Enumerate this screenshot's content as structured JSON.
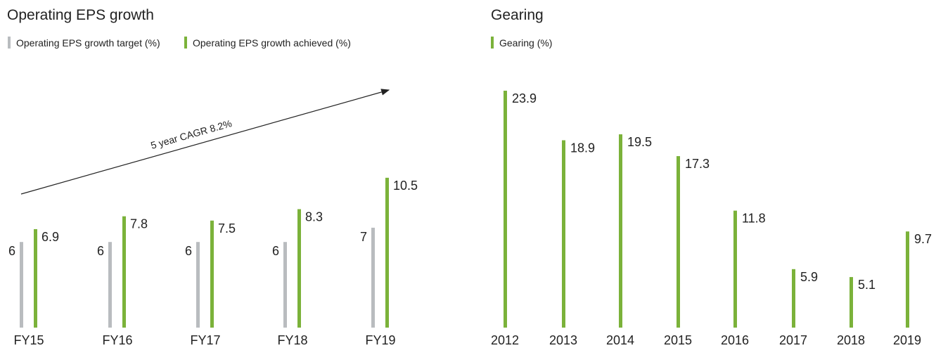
{
  "chart_data": [
    {
      "type": "bar",
      "title": "Operating EPS growth",
      "categories": [
        "FY15",
        "FY16",
        "FY17",
        "FY18",
        "FY19"
      ],
      "series": [
        {
          "name": "Operating EPS growth target (%)",
          "values": [
            6,
            6,
            6,
            6,
            7
          ]
        },
        {
          "name": "Operating EPS growth achieved (%)",
          "values": [
            6.9,
            7.8,
            7.5,
            8.3,
            10.5
          ]
        }
      ],
      "annotation": "5 year CAGR 8.2%",
      "ylim": [
        0,
        12
      ],
      "grid": false,
      "legend_position": "top-left",
      "colors": {
        "target": "#b9bcbf",
        "achieved": "#7bb23a"
      }
    },
    {
      "type": "bar",
      "title": "Gearing",
      "categories": [
        "2012",
        "2013",
        "2014",
        "2015",
        "2016",
        "2017",
        "2018",
        "2019"
      ],
      "series": [
        {
          "name": "Gearing (%)",
          "values": [
            23.9,
            18.9,
            19.5,
            17.3,
            11.8,
            5.9,
            5.1,
            9.7
          ]
        }
      ],
      "ylim": [
        0,
        25
      ],
      "grid": false,
      "legend_position": "top-left",
      "colors": {
        "gearing": "#7bb23a"
      }
    }
  ]
}
